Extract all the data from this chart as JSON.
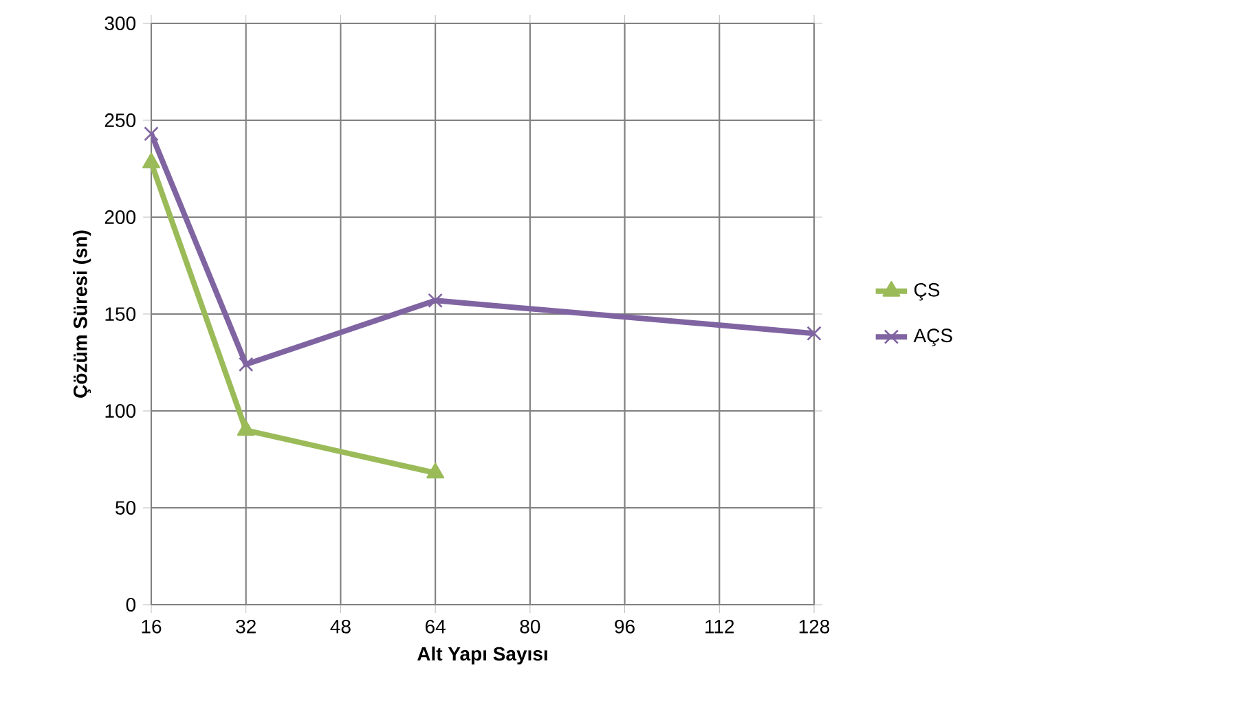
{
  "chart_data": {
    "type": "line",
    "xlabel": "Alt Yapı Sayısı",
    "ylabel": "Çözüm Süresi (sn)",
    "xlim": [
      16,
      128
    ],
    "xticks": [
      16,
      32,
      48,
      64,
      80,
      96,
      112,
      128
    ],
    "ylim": [
      0,
      300
    ],
    "yticks": [
      0,
      50,
      100,
      150,
      200,
      250,
      300
    ],
    "grid": true,
    "legend": "right",
    "line_style": "solid",
    "series": [
      {
        "name": "ÇS",
        "color": "#9bbb59",
        "marker": "triangle",
        "x": [
          16,
          32,
          64
        ],
        "values": [
          228,
          90,
          68
        ]
      },
      {
        "name": "AÇS",
        "color": "#8064a2",
        "marker": "cross",
        "x": [
          16,
          32,
          64,
          128
        ],
        "values": [
          243,
          124,
          157,
          140
        ]
      }
    ]
  }
}
